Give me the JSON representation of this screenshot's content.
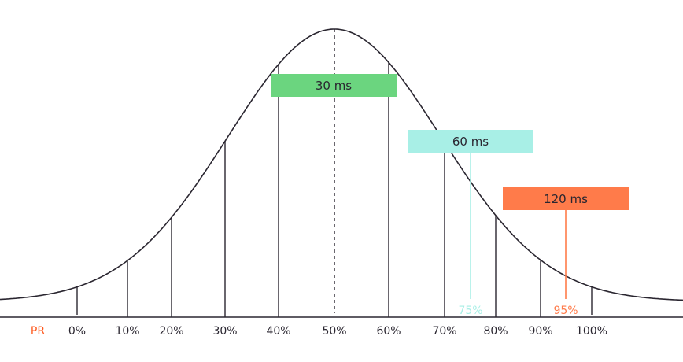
{
  "chart_data": {
    "type": "line",
    "title": "",
    "description_label": "PR",
    "xlabel": "",
    "ylabel": "",
    "tick_labels": [
      "0%",
      "10%",
      "20%",
      "30%",
      "40%",
      "50%",
      "60%",
      "70%",
      "80%",
      "90%",
      "100%"
    ],
    "median_label": "50%",
    "annotations": [
      {
        "label": "30 ms",
        "range": [
          "40%",
          "60%"
        ],
        "color": "#6bd57f"
      },
      {
        "label": "60 ms",
        "percentile": "75%",
        "color": "#a8efe6"
      },
      {
        "label": "120 ms",
        "percentile": "95%",
        "color": "#ff7b4a"
      }
    ],
    "markers": [
      {
        "label": "75%",
        "value": 75,
        "color": "#a8efe6"
      },
      {
        "label": "95%",
        "value": 95,
        "color": "#ff7b4a"
      }
    ],
    "curve": "normal distribution",
    "grid": false
  },
  "colors": {
    "axis": "#2a2630",
    "pr": "#ff5a1f"
  }
}
